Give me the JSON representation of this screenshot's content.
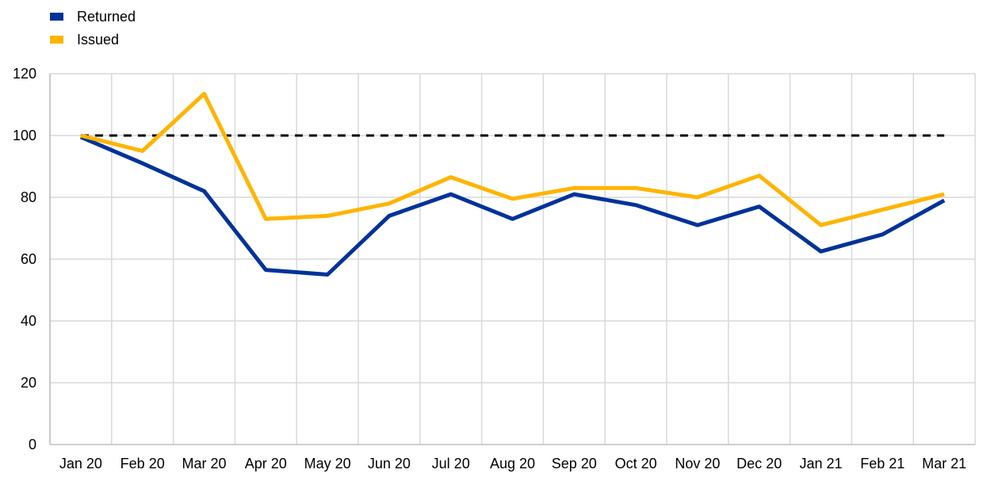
{
  "chart_data": {
    "type": "line",
    "categories": [
      "Jan 20",
      "Feb 20",
      "Mar 20",
      "Apr 20",
      "May 20",
      "Jun 20",
      "Jul 20",
      "Aug 20",
      "Sep 20",
      "Oct 20",
      "Nov 20",
      "Dec 20",
      "Jan 21",
      "Feb 21",
      "Mar 21"
    ],
    "series": [
      {
        "name": "Returned",
        "color": "#003299",
        "values": [
          99.5,
          91,
          82,
          56.5,
          55,
          74,
          81,
          73,
          81,
          77.5,
          71,
          77,
          62.5,
          68,
          79
        ]
      },
      {
        "name": "Issued",
        "color": "#FFB400",
        "values": [
          100,
          95,
          113.5,
          73,
          74,
          78,
          86.5,
          79.5,
          83,
          83,
          80,
          87,
          71,
          76,
          81
        ]
      }
    ],
    "reference_line": {
      "value": 100,
      "style": "dashed",
      "color": "#000000"
    },
    "ylim": [
      0,
      120
    ],
    "yticks": [
      0,
      20,
      40,
      60,
      80,
      100,
      120
    ],
    "grid": true,
    "legend_position": "top-left",
    "title": "",
    "xlabel": "",
    "ylabel": ""
  }
}
